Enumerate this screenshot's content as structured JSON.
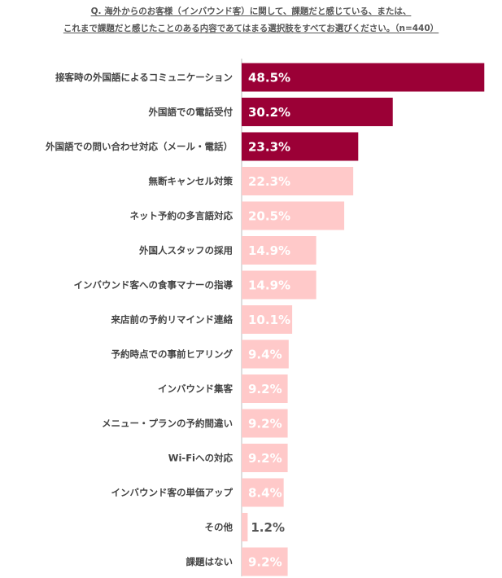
{
  "question": {
    "line1": "Q. 海外からのお客様（インバウンド客）に関して、課題だと感じている、または、",
    "line2": "これまで課題だと感じたことのある内容であてはまる選択肢をすべてお選びください。（n=440）"
  },
  "colors": {
    "highlight": "#9b0036",
    "normal": "#ffc9c9",
    "label_on_dark": "#ffffff",
    "label_on_light": "#ffffff",
    "label_outside": "#555555",
    "axis": "#bbbbbb"
  },
  "chart_data": {
    "type": "bar",
    "orientation": "horizontal",
    "categories": [
      "接客時の外国語によるコミュニケーション",
      "外国語での電話受付",
      "外国語での問い合わせ対応（メール・電話）",
      "無断キャンセル対策",
      "ネット予約の多言語対応",
      "外国人スタッフの採用",
      "インバウンド客への食事マナーの指導",
      "来店前の予約リマインド連絡",
      "予約時点での事前ヒアリング",
      "インバウンド集客",
      "メニュー・プランの予約間違い",
      "Wi-Fiへの対応",
      "インバウンド客の単価アップ",
      "その他",
      "課題はない"
    ],
    "values": [
      48.5,
      30.2,
      23.3,
      22.3,
      20.5,
      14.9,
      14.9,
      10.1,
      9.4,
      9.2,
      9.2,
      9.2,
      8.4,
      1.2,
      9.2
    ],
    "value_labels": [
      "48.5%",
      "30.2%",
      "23.3%",
      "22.3%",
      "20.5%",
      "14.9%",
      "14.9%",
      "10.1%",
      "9.4%",
      "9.2%",
      "9.2%",
      "9.2%",
      "8.4%",
      "1.2%",
      "9.2%"
    ],
    "highlighted_top": 3,
    "unit": "%",
    "title": "",
    "xlabel": "",
    "ylabel": "",
    "grid": false,
    "legend": "none"
  }
}
